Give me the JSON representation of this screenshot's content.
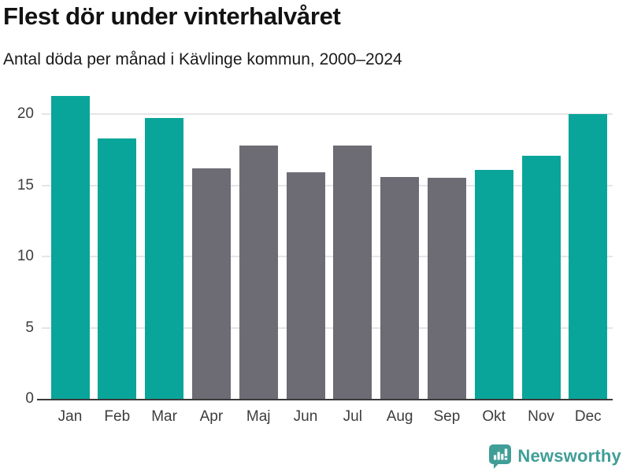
{
  "chart_data": {
    "type": "bar",
    "title": "Flest dör under vinterhalvåret",
    "subtitle": "Antal döda per månad i Kävlinge kommun, 2000–2024",
    "categories": [
      "Jan",
      "Feb",
      "Mar",
      "Apr",
      "Maj",
      "Jun",
      "Jul",
      "Aug",
      "Sep",
      "Okt",
      "Nov",
      "Dec"
    ],
    "values": [
      21.3,
      18.3,
      19.7,
      16.2,
      17.8,
      15.9,
      17.8,
      15.6,
      15.5,
      16.1,
      17.1,
      20.0
    ],
    "groups": [
      "winter",
      "winter",
      "winter",
      "summer",
      "summer",
      "summer",
      "summer",
      "summer",
      "summer",
      "winter",
      "winter",
      "winter"
    ],
    "group_colors": {
      "winter": "#0aa59a",
      "summer": "#6d6c74"
    },
    "xlabel": "",
    "ylabel": "",
    "ylim": [
      0,
      21.66
    ],
    "yticks": [
      0,
      5,
      10,
      15,
      20
    ],
    "grid": "horizontal-only",
    "legend": "none"
  },
  "branding": {
    "name": "Newsworthy",
    "logo_icon": "newsworthy-speech-bubble-chart-icon",
    "color": "#409e97"
  }
}
